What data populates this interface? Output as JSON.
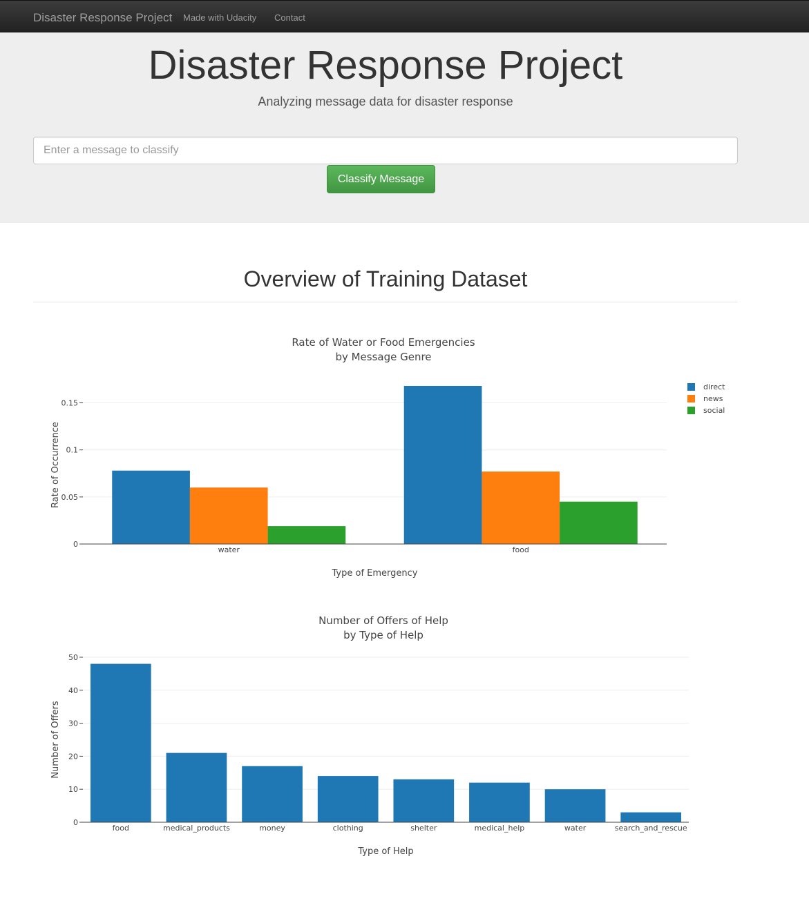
{
  "nav": {
    "brand": "Disaster Response Project",
    "links": [
      "Made with Udacity",
      "Contact"
    ]
  },
  "header": {
    "title": "Disaster Response Project",
    "subtitle": "Analyzing message data for disaster response"
  },
  "form": {
    "placeholder": "Enter a message to classify",
    "button_label": "Classify Message"
  },
  "overview": {
    "title": "Overview of Training Dataset"
  },
  "chart_data": [
    {
      "type": "bar",
      "title": [
        "Rate of Water or Food Emergencies",
        "by Message Genre"
      ],
      "xlabel": "Type of Emergency",
      "ylabel": "Rate of Occurrence",
      "categories": [
        "water",
        "food"
      ],
      "series": [
        {
          "name": "direct",
          "color": "#1f77b4",
          "values": [
            0.078,
            0.168
          ]
        },
        {
          "name": "news",
          "color": "#ff7f0e",
          "values": [
            0.06,
            0.077
          ]
        },
        {
          "name": "social",
          "color": "#2ca02c",
          "values": [
            0.019,
            0.045
          ]
        }
      ],
      "ylim": [
        0,
        0.168
      ],
      "yticks": [
        0,
        0.05,
        0.1,
        0.15
      ],
      "ytick_labels": [
        "0",
        "0.05",
        "0.1",
        "0.15"
      ],
      "legend": "top-right",
      "grid": true
    },
    {
      "type": "bar",
      "title": [
        "Number of Offers of Help",
        "by Type of Help"
      ],
      "xlabel": "Type of Help",
      "ylabel": "Number of Offers",
      "categories": [
        "food",
        "medical_products",
        "money",
        "clothing",
        "shelter",
        "medical_help",
        "water",
        "search_and_rescue"
      ],
      "series": [
        {
          "color": "#1f77b4",
          "values": [
            48,
            21,
            17,
            14,
            13,
            12,
            10,
            3
          ]
        }
      ],
      "ylim": [
        0,
        50
      ],
      "yticks": [
        0,
        10,
        20,
        30,
        40,
        50
      ],
      "ytick_labels": [
        "0",
        "10",
        "20",
        "30",
        "40",
        "50"
      ],
      "grid": true
    }
  ]
}
